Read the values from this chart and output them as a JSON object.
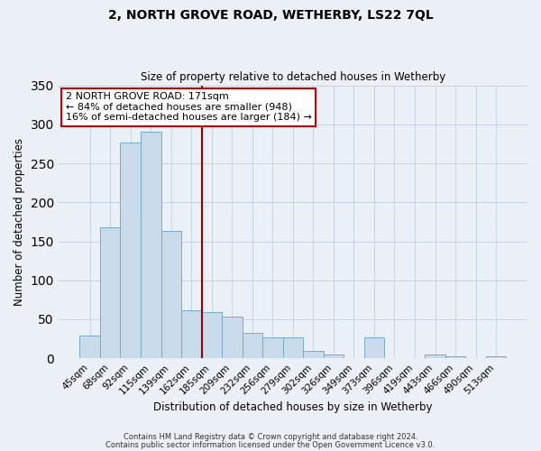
{
  "title": "2, NORTH GROVE ROAD, WETHERBY, LS22 7QL",
  "subtitle": "Size of property relative to detached houses in Wetherby",
  "xlabel": "Distribution of detached houses by size in Wetherby",
  "ylabel": "Number of detached properties",
  "bar_labels": [
    "45sqm",
    "68sqm",
    "92sqm",
    "115sqm",
    "139sqm",
    "162sqm",
    "185sqm",
    "209sqm",
    "232sqm",
    "256sqm",
    "279sqm",
    "302sqm",
    "326sqm",
    "349sqm",
    "373sqm",
    "396sqm",
    "419sqm",
    "443sqm",
    "466sqm",
    "490sqm",
    "513sqm"
  ],
  "bar_heights": [
    29,
    168,
    277,
    290,
    163,
    61,
    59,
    53,
    33,
    27,
    27,
    10,
    5,
    0,
    27,
    0,
    0,
    5,
    3,
    0,
    3
  ],
  "bar_color": "#c9daea",
  "bar_edgecolor": "#7aaac8",
  "vline_color": "#990000",
  "ylim": [
    0,
    350
  ],
  "yticks": [
    0,
    50,
    100,
    150,
    200,
    250,
    300,
    350
  ],
  "annotation_title": "2 NORTH GROVE ROAD: 171sqm",
  "annotation_line1": "← 84% of detached houses are smaller (948)",
  "annotation_line2": "16% of semi-detached houses are larger (184) →",
  "annotation_box_facecolor": "#ffffff",
  "annotation_box_edgecolor": "#cc0000",
  "footer1": "Contains HM Land Registry data © Crown copyright and database right 2024.",
  "footer2": "Contains public sector information licensed under the Open Government Licence v3.0.",
  "fig_facecolor": "#eaf0f6",
  "plot_facecolor": "#eaf0f6"
}
